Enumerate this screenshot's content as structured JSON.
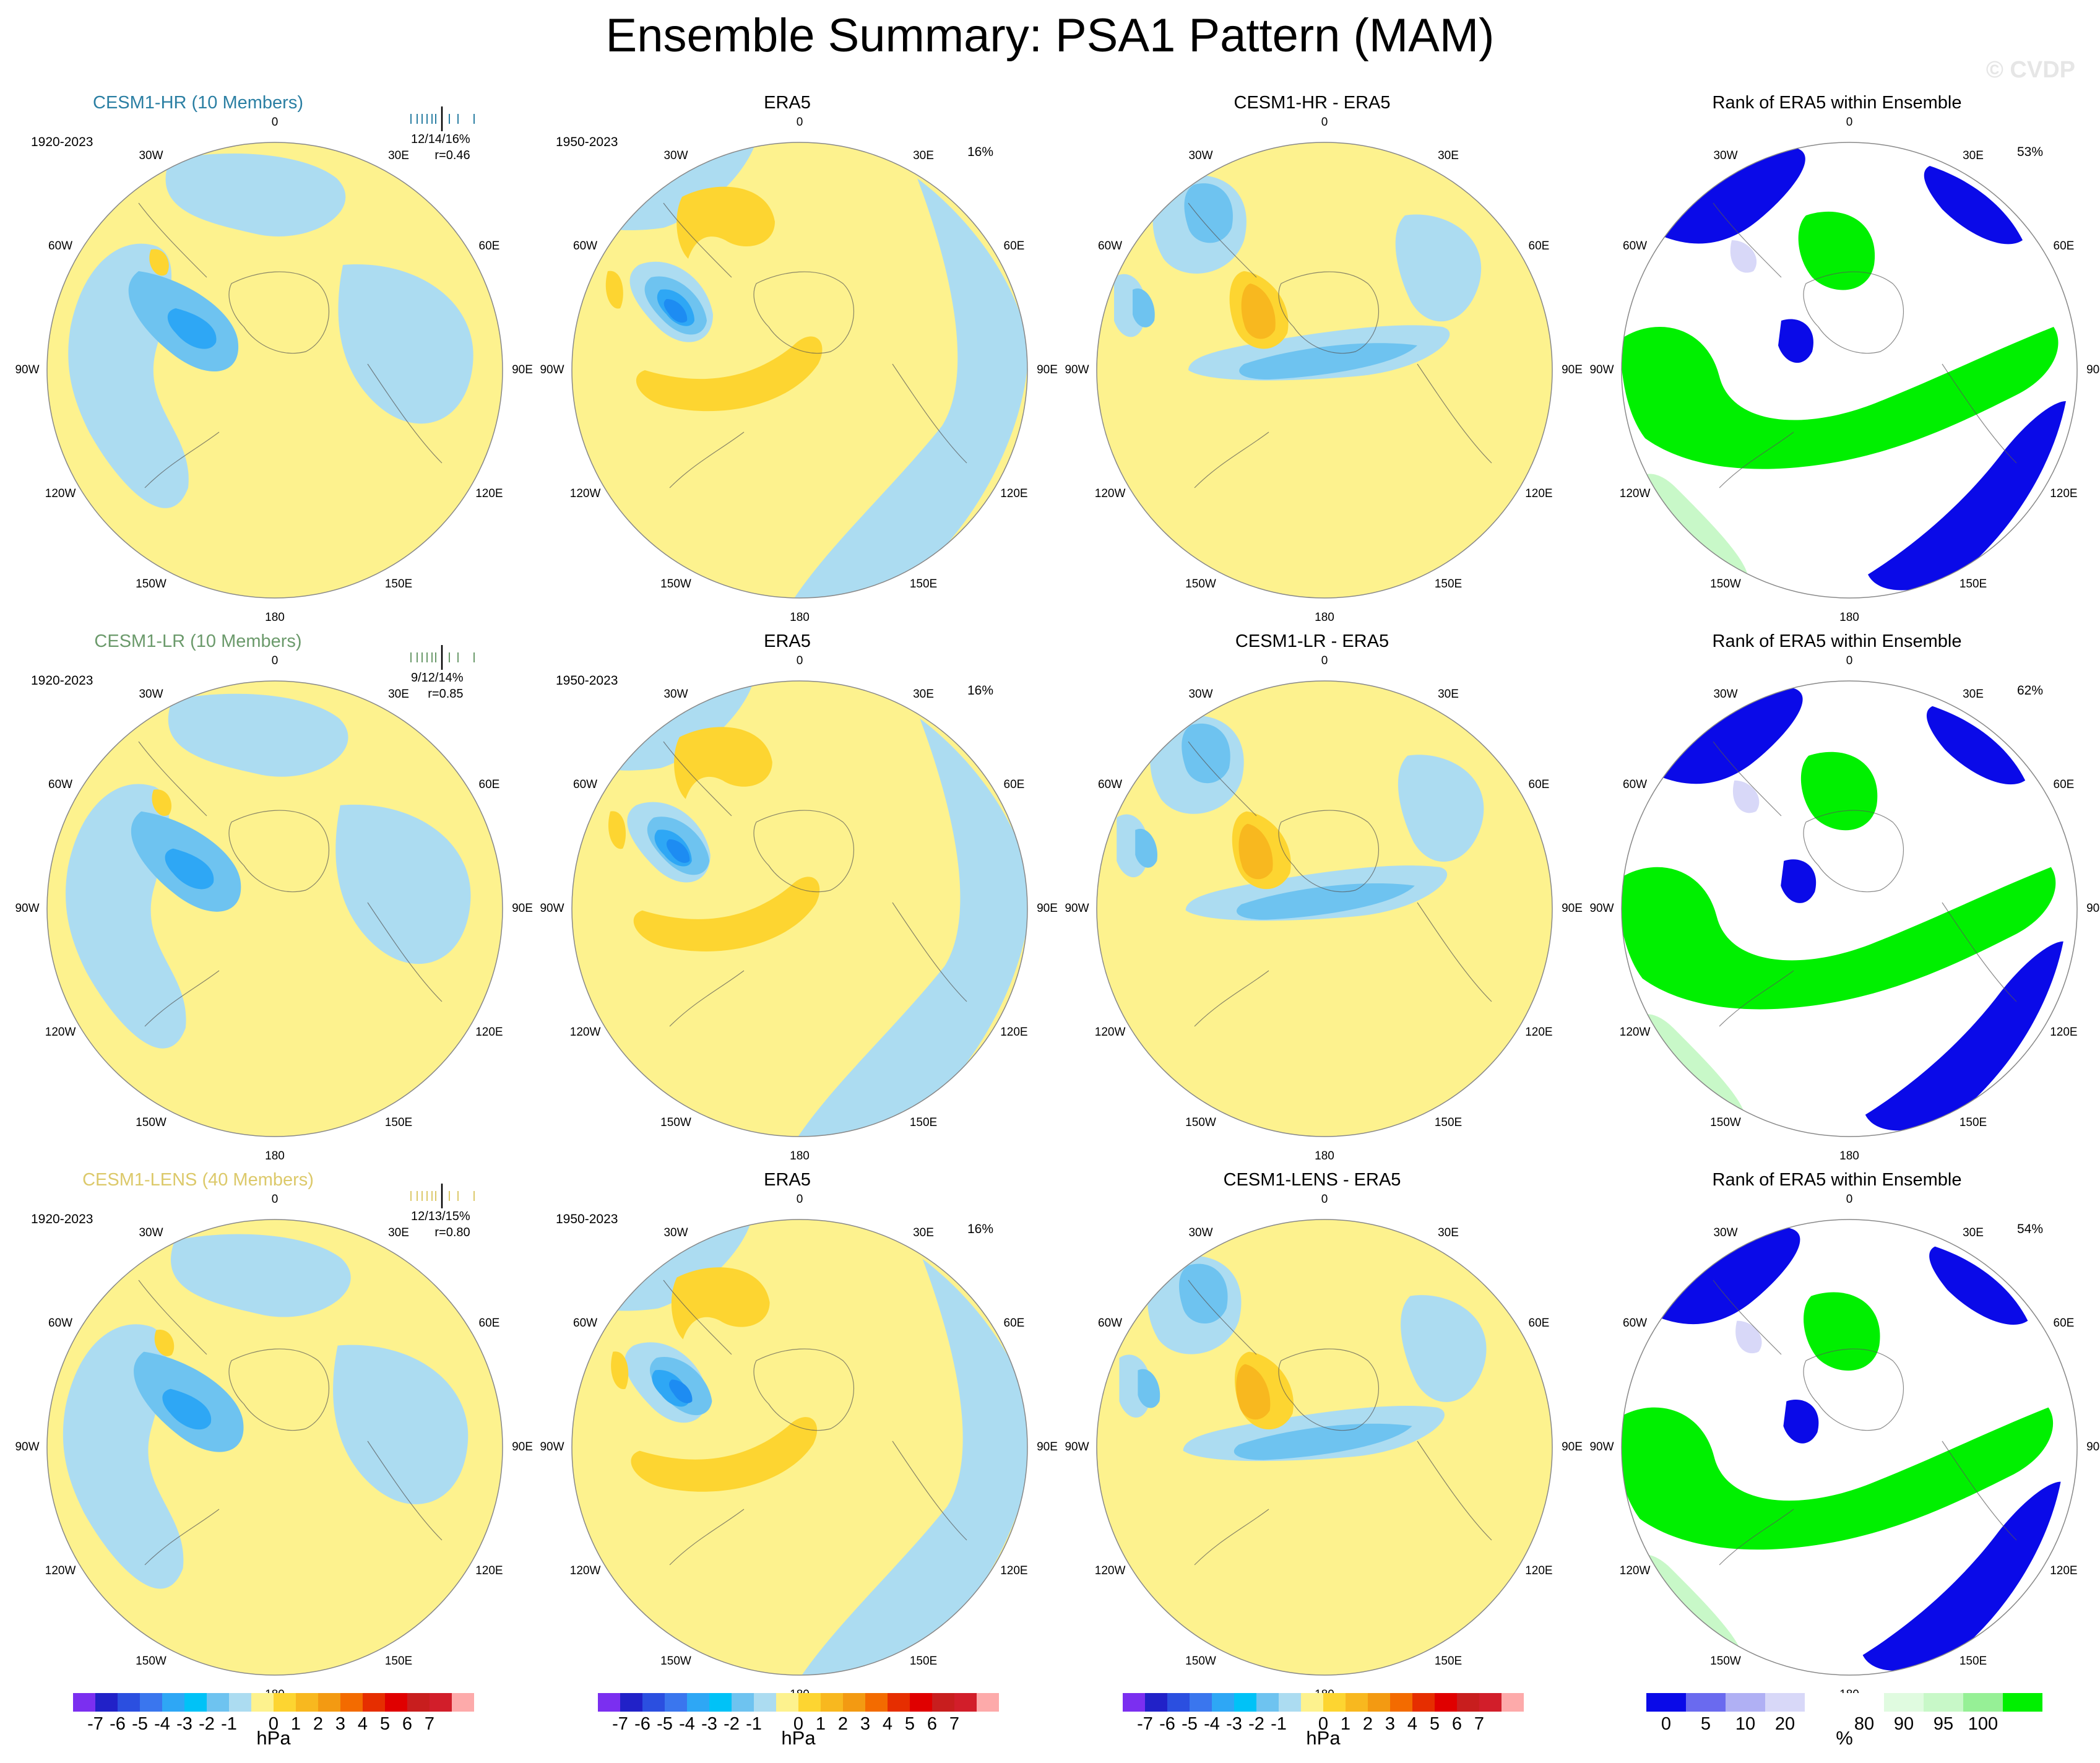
{
  "title": "Ensemble Summary: PSA1 Pattern (MAM)",
  "watermark": "© CVDP",
  "grid_labels": [
    "0",
    "30E",
    "60E",
    "90E",
    "120E",
    "150E",
    "180",
    "150W",
    "120W",
    "90W",
    "60W",
    "30W"
  ],
  "colors": {
    "yellow": "#fdf28e",
    "lightblue": "#acdcf1",
    "blue1": "#6ec3f0",
    "blue2": "#2ea7f5",
    "blue3": "#1d8cf2",
    "orange1": "#fdd531",
    "orange2": "#f8b81f",
    "orange3": "#f39a12",
    "rank_blue": "#0a0ae8",
    "rank_lav": "#d8d8f8",
    "rank_green": "#00f000",
    "rank_lgreen": "#c8f8c8",
    "rank_mgreen": "#96f096"
  },
  "rows": [
    {
      "model": {
        "title": "CESM1-HR (10 Members)",
        "color": "#2b7fa3",
        "period": "1920-2023",
        "stats": "12/14/16%",
        "r": "r=0.46"
      },
      "obs": {
        "title": "ERA5",
        "period": "1950-2023",
        "pct": "16%"
      },
      "diff": {
        "title": "CESM1-HR - ERA5"
      },
      "rank": {
        "title": "Rank of ERA5 within Ensemble",
        "pct": "53%"
      }
    },
    {
      "model": {
        "title": "CESM1-LR (10 Members)",
        "color": "#6b9a6b",
        "period": "1920-2023",
        "stats": "9/12/14%",
        "r": "r=0.85"
      },
      "obs": {
        "title": "ERA5",
        "period": "1950-2023",
        "pct": "16%"
      },
      "diff": {
        "title": "CESM1-LR - ERA5"
      },
      "rank": {
        "title": "Rank of ERA5 within Ensemble",
        "pct": "62%"
      }
    },
    {
      "model": {
        "title": "CESM1-LENS (40 Members)",
        "color": "#dcc96a",
        "period": "1920-2023",
        "stats": "12/13/15%",
        "r": "r=0.80"
      },
      "obs": {
        "title": "ERA5",
        "period": "1950-2023",
        "pct": "16%"
      },
      "diff": {
        "title": "CESM1-LENS - ERA5"
      },
      "rank": {
        "title": "Rank of ERA5 within Ensemble",
        "pct": "54%"
      }
    }
  ],
  "colorbar_hpa": {
    "colors": [
      "#7b2ff0",
      "#2121c8",
      "#2b4fe0",
      "#3a76ee",
      "#2ea7f5",
      "#00c2f7",
      "#6ec3f0",
      "#acdcf1",
      "#fdf28e",
      "#fdd531",
      "#f8b81f",
      "#f39a12",
      "#f36b00",
      "#e62e00",
      "#e00000",
      "#c81e1e",
      "#d21e2a",
      "#fdaaaa"
    ],
    "ticks": [
      "-7",
      "-6",
      "-5",
      "-4",
      "-3",
      "-2",
      "-1",
      "0",
      "1",
      "2",
      "3",
      "4",
      "5",
      "6",
      "7"
    ],
    "unit": "hPa"
  },
  "colorbar_rank": {
    "colors": [
      "#0a0ae8",
      "#6a6aef",
      "#b0b0f4",
      "#d8d8f8",
      "#ffffff",
      "#ffffff",
      "#e0fbe0",
      "#c8f8c8",
      "#96f096",
      "#00f000"
    ],
    "ticks": [
      "0",
      "5",
      "10",
      "20",
      "80",
      "90",
      "95",
      "100"
    ],
    "unit": "%"
  }
}
